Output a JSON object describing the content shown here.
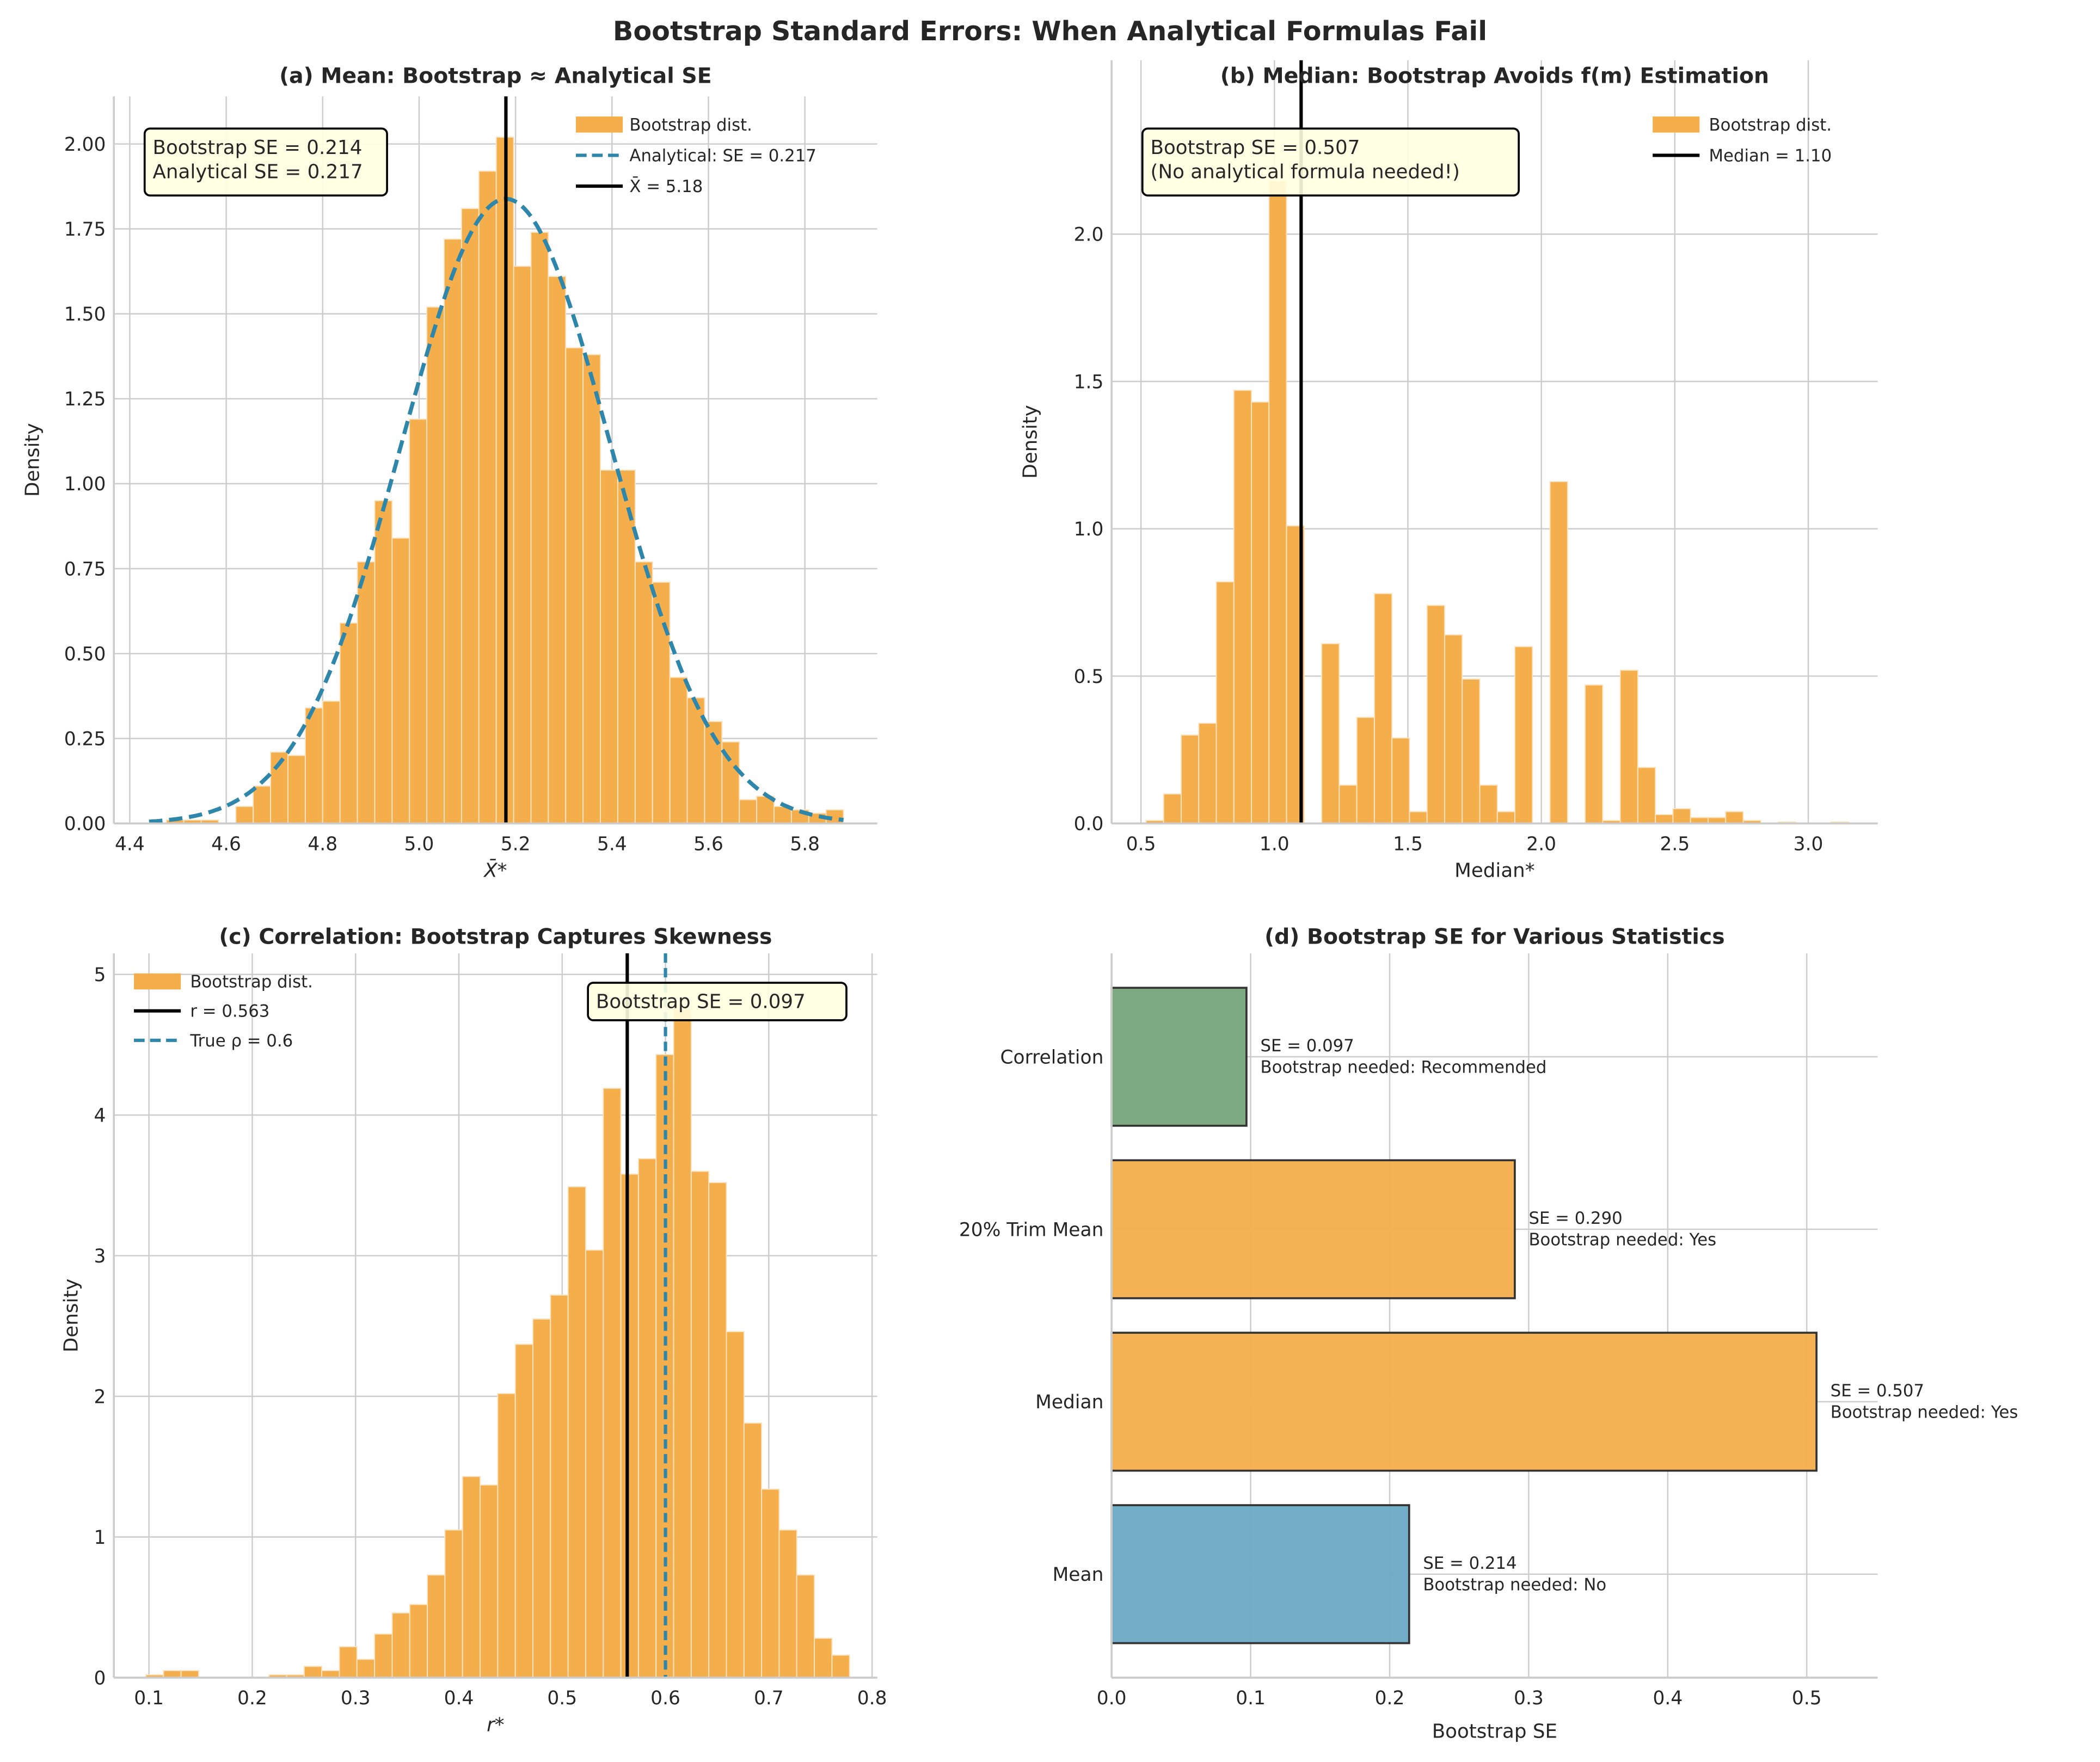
{
  "figure": {
    "suptitle": "Bootstrap Standard Errors: When Analytical Formulas Fail",
    "colors": {
      "orange": "#f4ae4c",
      "blue": "#2e86ab",
      "blue_bar": "#6aaac4",
      "green": "#77a57a",
      "box_fill": "#ffffe0",
      "grid": "#cccccc"
    }
  },
  "chart_data": [
    {
      "type": "histogram",
      "title": "(a) Mean: Bootstrap ≈ Analytical SE",
      "xlabel": "X̄*",
      "ylabel": "Density",
      "x_ticks": [
        "4.4",
        "4.6",
        "4.8",
        "5.0",
        "5.2",
        "5.4",
        "5.6",
        "5.8"
      ],
      "y_ticks": [
        "0.00",
        "0.25",
        "0.50",
        "0.75",
        "1.00",
        "1.25",
        "1.50",
        "1.75",
        "2.00"
      ],
      "xlim": [
        4.367,
        5.95
      ],
      "ylim": [
        0,
        2.14
      ],
      "grid": true,
      "x_start": 4.44,
      "bin_width": 0.036,
      "density": [
        0,
        0.01,
        0.01,
        0.01,
        0,
        0.05,
        0.11,
        0.21,
        0.2,
        0.34,
        0.36,
        0.59,
        0.77,
        0.95,
        0.84,
        1.19,
        1.52,
        1.72,
        1.81,
        1.92,
        2.02,
        1.64,
        1.74,
        1.61,
        1.4,
        1.38,
        1.04,
        1.04,
        0.77,
        0.71,
        0.43,
        0.37,
        0.3,
        0.24,
        0.07,
        0.08,
        0.05,
        0.04,
        0.03,
        0.04
      ],
      "normal_curve": {
        "mean": 5.18,
        "sd": 0.217,
        "x_range": [
          4.44,
          5.88
        ]
      },
      "vlines": [
        {
          "x": 5.18,
          "style": "solid",
          "color": "#000000"
        }
      ],
      "legend": {
        "position": "upper-right",
        "entries": [
          {
            "kind": "patch",
            "label": "Bootstrap dist."
          },
          {
            "kind": "dashed",
            "label": "Analytical: SE = 0.217"
          },
          {
            "kind": "solid",
            "label": "X̄ = 5.18"
          }
        ]
      },
      "annotation": [
        "Bootstrap SE = 0.214",
        "Analytical SE = 0.217"
      ]
    },
    {
      "type": "histogram",
      "title": "(b) Median: Bootstrap Avoids f(m) Estimation",
      "xlabel": "Median*",
      "ylabel": "Density",
      "x_ticks": [
        "0.5",
        "1.0",
        "1.5",
        "2.0",
        "2.5",
        "3.0"
      ],
      "y_ticks": [
        "0.0",
        "0.5",
        "1.0",
        "1.5",
        "2.0"
      ],
      "xlim": [
        0.39,
        3.26
      ],
      "ylim": [
        0,
        2.59
      ],
      "grid": true,
      "x_start": 0.519,
      "bin_width": 0.0658,
      "density": [
        0.01,
        0.1,
        0.3,
        0.34,
        0.82,
        1.47,
        1.43,
        2.18,
        1.01,
        0,
        0.61,
        0.13,
        0.36,
        0.78,
        0.29,
        0.04,
        0.74,
        0.64,
        0.49,
        0.13,
        0.04,
        0.6,
        0,
        1.16,
        0,
        0.47,
        0.01,
        0.52,
        0.19,
        0.03,
        0.05,
        0.02,
        0.02,
        0.04,
        0.01,
        0,
        0.005,
        0,
        0,
        0.005
      ],
      "vlines": [
        {
          "x": 1.1,
          "style": "solid",
          "color": "#000000"
        }
      ],
      "legend": {
        "position": "upper-right",
        "entries": [
          {
            "kind": "patch",
            "label": "Bootstrap dist."
          },
          {
            "kind": "solid",
            "label": "Median = 1.10"
          }
        ]
      },
      "annotation": [
        "Bootstrap SE = 0.507",
        "(No analytical formula needed!)"
      ]
    },
    {
      "type": "histogram",
      "title": "(c) Correlation: Bootstrap Captures Skewness",
      "xlabel": "r*",
      "ylabel": "Density",
      "x_ticks": [
        "0.1",
        "0.2",
        "0.3",
        "0.4",
        "0.5",
        "0.6",
        "0.7",
        "0.8"
      ],
      "y_ticks": [
        "0",
        "1",
        "2",
        "3",
        "4",
        "5"
      ],
      "xlim": [
        0.066,
        0.805
      ],
      "ylim": [
        0,
        5.15
      ],
      "grid": true,
      "x_start": 0.097,
      "bin_width": 0.01703,
      "density": [
        0.02,
        0.05,
        0.05,
        0,
        0,
        0,
        0,
        0.02,
        0.02,
        0.08,
        0.05,
        0.22,
        0.13,
        0.31,
        0.46,
        0.52,
        0.73,
        1.05,
        1.43,
        1.37,
        2.02,
        2.37,
        2.55,
        2.72,
        3.49,
        3.04,
        4.19,
        3.58,
        3.69,
        4.43,
        4.75,
        3.6,
        3.52,
        2.46,
        1.81,
        1.34,
        1.05,
        0.73,
        0.28,
        0.16
      ],
      "vlines": [
        {
          "x": 0.563,
          "style": "solid",
          "color": "#000000"
        },
        {
          "x": 0.6,
          "style": "dashed",
          "color": "#2e86ab"
        }
      ],
      "legend": {
        "position": "upper-left",
        "entries": [
          {
            "kind": "patch",
            "label": "Bootstrap dist."
          },
          {
            "kind": "solid",
            "label": "r = 0.563"
          },
          {
            "kind": "dashed",
            "label": "True ρ = 0.6"
          }
        ]
      },
      "annotation": [
        "Bootstrap SE = 0.097"
      ]
    },
    {
      "type": "bar",
      "orientation": "horizontal",
      "title": "(d) Bootstrap SE for Various Statistics",
      "xlabel": "Bootstrap SE",
      "ylabel": "",
      "x_ticks": [
        "0.0",
        "0.1",
        "0.2",
        "0.3",
        "0.4",
        "0.5"
      ],
      "xlim": [
        0,
        0.551
      ],
      "grid": true,
      "categories": [
        "Mean",
        "Median",
        "20% Trim Mean",
        "Correlation"
      ],
      "values": [
        0.214,
        0.507,
        0.29,
        0.097
      ],
      "bar_colors": [
        "#6aaac4",
        "#f4ae4c",
        "#f4ae4c",
        "#77a57a"
      ],
      "labels": [
        [
          "SE = 0.214",
          "Bootstrap needed: No"
        ],
        [
          "SE = 0.507",
          "Bootstrap needed: Yes"
        ],
        [
          "SE = 0.290",
          "Bootstrap needed: Yes"
        ],
        [
          "SE = 0.097",
          "Bootstrap needed: Recommended"
        ]
      ]
    }
  ]
}
